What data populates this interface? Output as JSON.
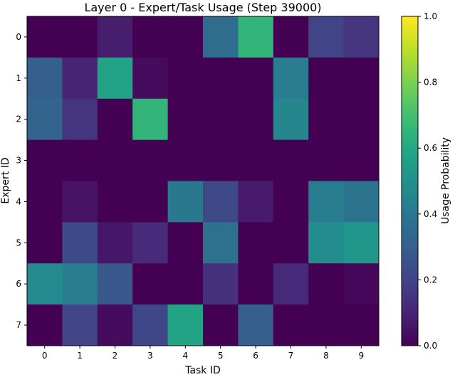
{
  "chart_data": {
    "type": "heatmap",
    "title": "Layer 0 - Expert/Task Usage (Step 39000)",
    "xlabel": "Task ID",
    "ylabel": "Expert ID",
    "x_categories": [
      "0",
      "1",
      "2",
      "3",
      "4",
      "5",
      "6",
      "7",
      "8",
      "9"
    ],
    "y_categories": [
      "0",
      "1",
      "2",
      "3",
      "4",
      "5",
      "6",
      "7"
    ],
    "values": [
      [
        0.0,
        0.0,
        0.08,
        0.0,
        0.0,
        0.35,
        0.65,
        0.0,
        0.2,
        0.15
      ],
      [
        0.3,
        0.1,
        0.58,
        0.03,
        0.0,
        0.0,
        0.0,
        0.42,
        0.0,
        0.0
      ],
      [
        0.32,
        0.15,
        0.0,
        0.65,
        0.0,
        0.0,
        0.0,
        0.45,
        0.0,
        0.0
      ],
      [
        0.0,
        0.0,
        0.0,
        0.0,
        0.0,
        0.0,
        0.0,
        0.0,
        0.0,
        0.0
      ],
      [
        0.0,
        0.05,
        0.0,
        0.0,
        0.4,
        0.22,
        0.07,
        0.0,
        0.42,
        0.38
      ],
      [
        0.0,
        0.23,
        0.06,
        0.12,
        0.0,
        0.37,
        0.0,
        0.0,
        0.48,
        0.52
      ],
      [
        0.47,
        0.42,
        0.27,
        0.0,
        0.0,
        0.14,
        0.0,
        0.12,
        0.0,
        0.02
      ],
      [
        0.0,
        0.2,
        0.03,
        0.21,
        0.58,
        0.0,
        0.3,
        0.0,
        0.0,
        0.0
      ]
    ],
    "colormap": "viridis",
    "vmin": 0.0,
    "vmax": 1.0,
    "colorbar": {
      "label": "Usage Probability",
      "ticks": [
        0.0,
        0.2,
        0.4,
        0.6,
        0.8,
        1.0
      ],
      "tick_labels": [
        "0.0",
        "0.2",
        "0.4",
        "0.6",
        "0.8",
        "1.0"
      ]
    },
    "grid": false
  }
}
